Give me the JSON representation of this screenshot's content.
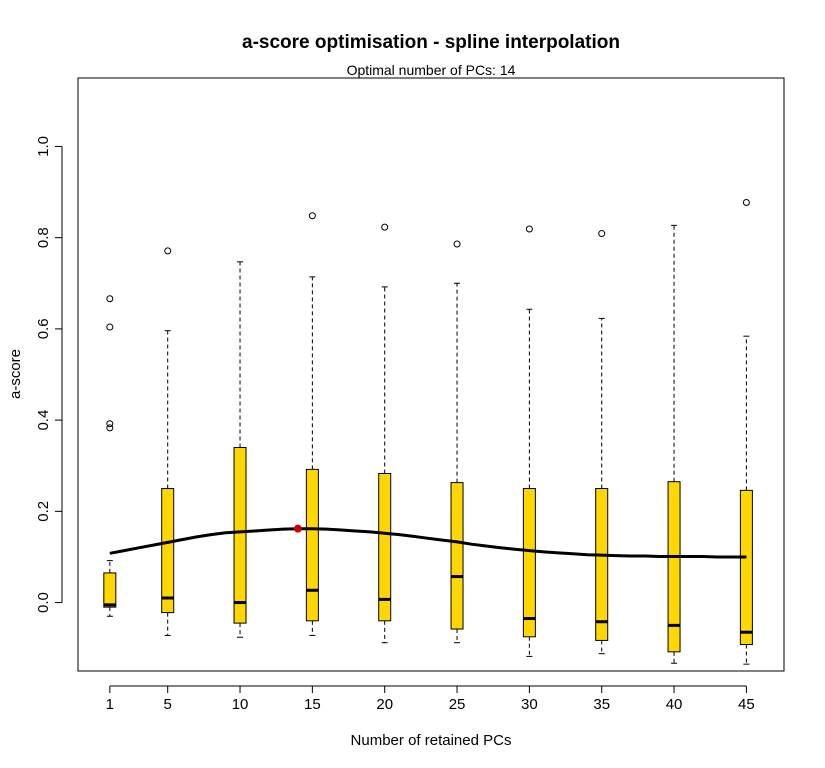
{
  "chart_data": {
    "type": "boxplot",
    "title": "a-score optimisation - spline interpolation",
    "subtitle": "Optimal number of PCs: 14",
    "xlabel": "Number of retained PCs",
    "ylabel": "a-score",
    "ylim": [
      -0.15,
      1.15
    ],
    "xlim": [
      -1.2,
      47.6
    ],
    "y_ticks": [
      0.0,
      0.2,
      0.4,
      0.6,
      0.8,
      1.0
    ],
    "y_tick_labels": [
      "0.0",
      "0.2",
      "0.4",
      "0.6",
      "0.8",
      "1.0"
    ],
    "x_ticks": [
      1,
      5,
      10,
      15,
      20,
      25,
      30,
      35,
      40,
      45
    ],
    "box_color": "#FFD700",
    "optimum_color": "#CC0000",
    "boxes": [
      {
        "x": 1,
        "whisker_low": -0.03,
        "q1": -0.01,
        "median": -0.005,
        "q3": 0.065,
        "whisker_high": 0.092,
        "outliers": [
          0.666,
          0.604,
          0.392,
          0.383
        ]
      },
      {
        "x": 5,
        "whisker_low": -0.072,
        "q1": -0.022,
        "median": 0.01,
        "q3": 0.25,
        "whisker_high": 0.596,
        "outliers": [
          0.771
        ]
      },
      {
        "x": 10,
        "whisker_low": -0.076,
        "q1": -0.045,
        "median": 0.0,
        "q3": 0.34,
        "whisker_high": 0.747,
        "outliers": []
      },
      {
        "x": 15,
        "whisker_low": -0.072,
        "q1": -0.04,
        "median": 0.027,
        "q3": 0.292,
        "whisker_high": 0.714,
        "outliers": [
          0.848
        ]
      },
      {
        "x": 20,
        "whisker_low": -0.088,
        "q1": -0.04,
        "median": 0.007,
        "q3": 0.283,
        "whisker_high": 0.692,
        "outliers": [
          0.823
        ]
      },
      {
        "x": 25,
        "whisker_low": -0.088,
        "q1": -0.058,
        "median": 0.057,
        "q3": 0.263,
        "whisker_high": 0.7,
        "outliers": [
          0.786
        ]
      },
      {
        "x": 30,
        "whisker_low": -0.118,
        "q1": -0.075,
        "median": -0.035,
        "q3": 0.25,
        "whisker_high": 0.643,
        "outliers": [
          0.819
        ]
      },
      {
        "x": 35,
        "whisker_low": -0.112,
        "q1": -0.083,
        "median": -0.042,
        "q3": 0.25,
        "whisker_high": 0.623,
        "outliers": [
          0.809
        ]
      },
      {
        "x": 40,
        "whisker_low": -0.133,
        "q1": -0.108,
        "median": -0.05,
        "q3": 0.265,
        "whisker_high": 0.827,
        "outliers": []
      },
      {
        "x": 45,
        "whisker_low": -0.135,
        "q1": -0.092,
        "median": -0.065,
        "q3": 0.246,
        "whisker_high": 0.584,
        "outliers": [
          0.877
        ]
      }
    ],
    "spline": {
      "x": [
        1,
        2,
        3,
        4,
        5,
        6,
        7,
        8,
        9,
        10,
        11,
        12,
        13,
        14,
        15,
        16,
        17,
        18,
        19,
        20,
        21,
        22,
        23,
        24,
        25,
        26,
        27,
        28,
        29,
        30,
        31,
        32,
        33,
        34,
        35,
        36,
        37,
        38,
        39,
        40,
        41,
        42,
        43,
        44,
        45
      ],
      "y": [
        0.108,
        0.114,
        0.12,
        0.126,
        0.132,
        0.138,
        0.144,
        0.149,
        0.153,
        0.155,
        0.157,
        0.159,
        0.161,
        0.162,
        0.162,
        0.161,
        0.159,
        0.157,
        0.155,
        0.152,
        0.149,
        0.145,
        0.141,
        0.137,
        0.133,
        0.128,
        0.124,
        0.12,
        0.117,
        0.114,
        0.111,
        0.109,
        0.107,
        0.105,
        0.104,
        0.103,
        0.102,
        0.102,
        0.101,
        0.101,
        0.101,
        0.101,
        0.1,
        0.1,
        0.1
      ]
    },
    "optimum": {
      "x": 14,
      "y": 0.162
    }
  }
}
